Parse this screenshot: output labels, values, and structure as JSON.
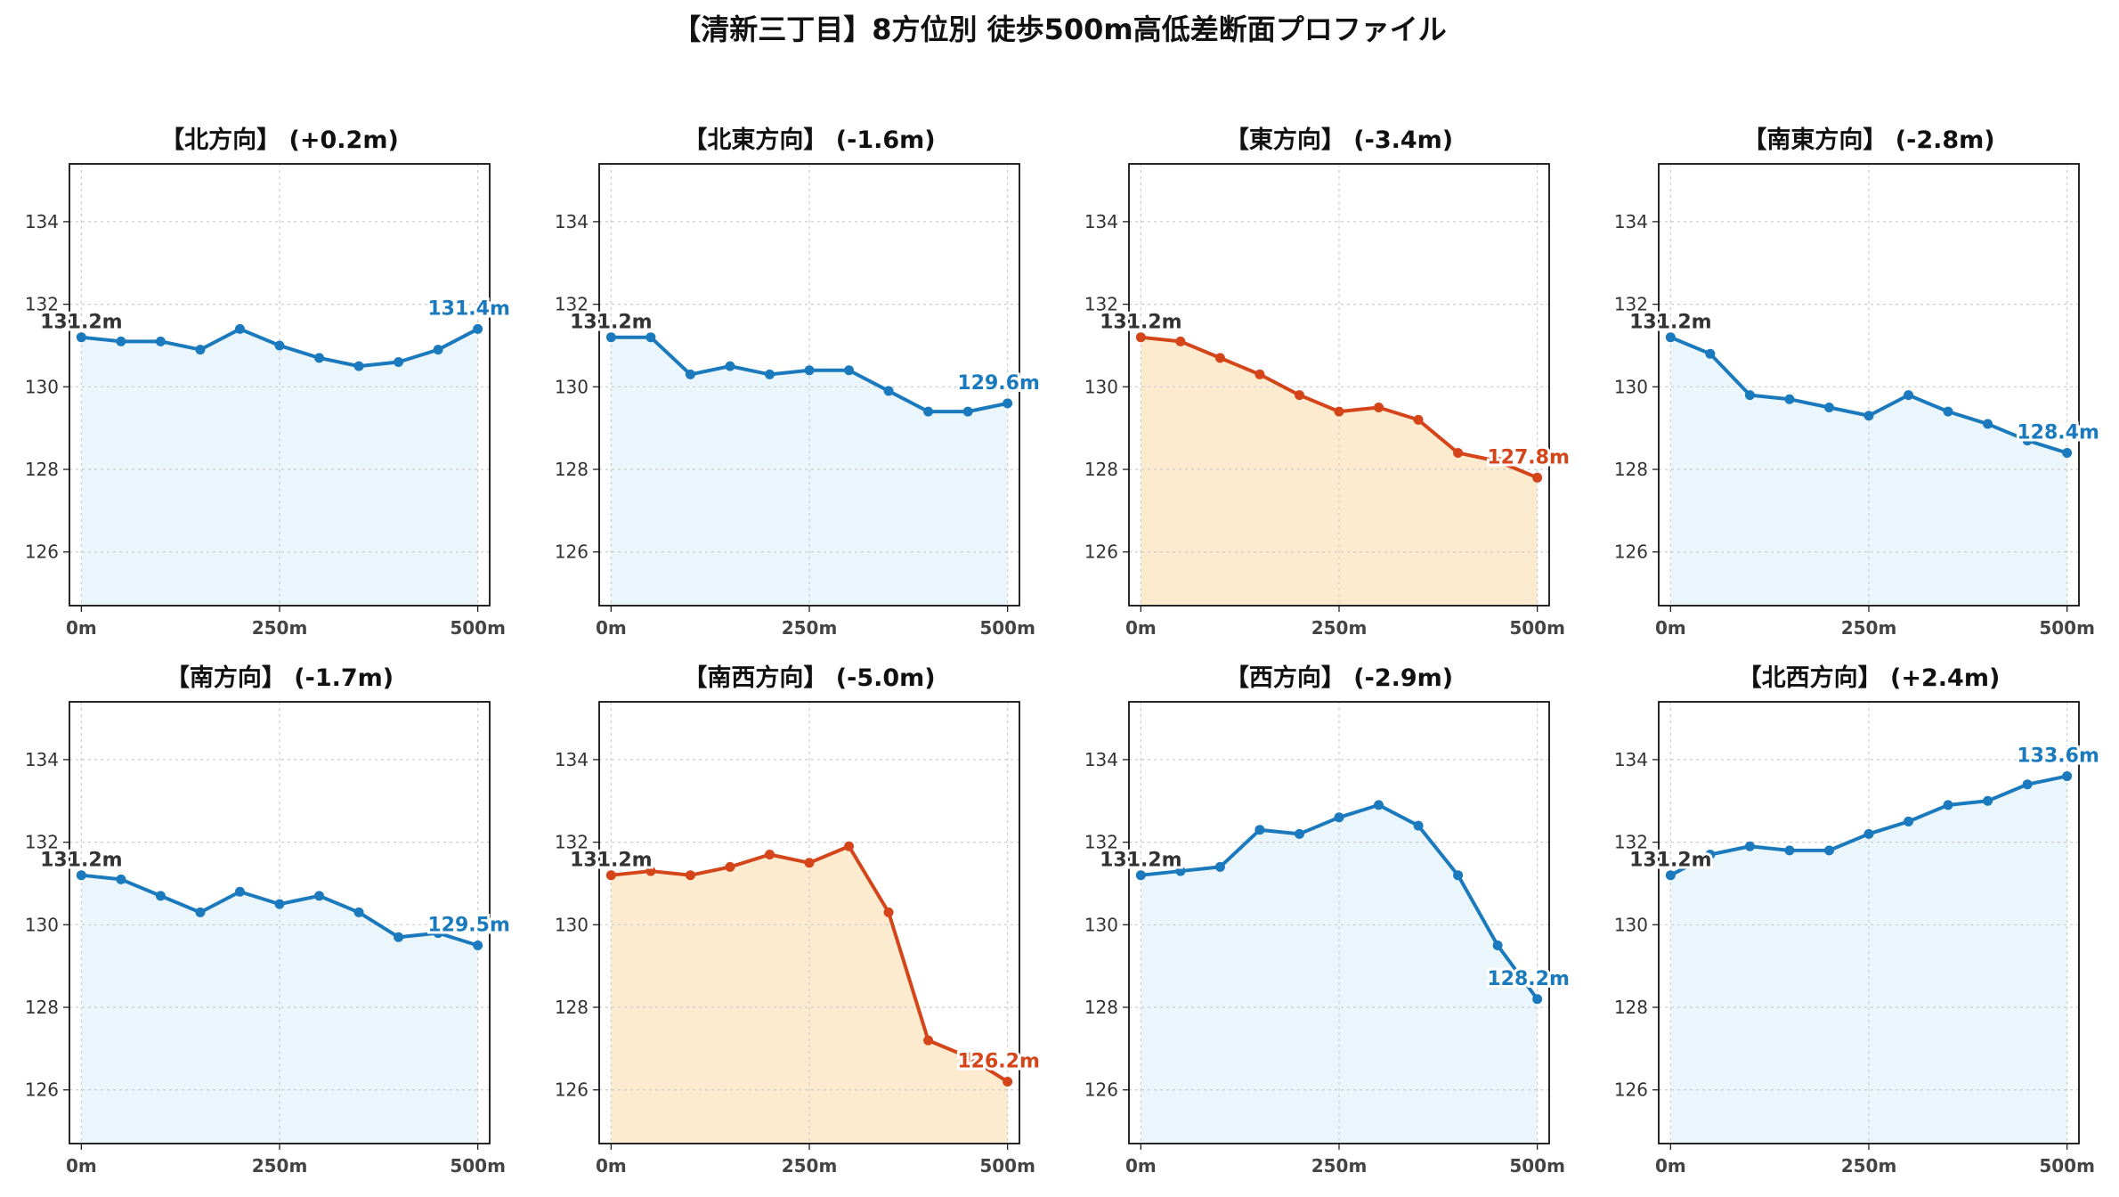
{
  "title": "【清新三丁目】8方位別 徒歩500m高低差断面プロファイル",
  "colors": {
    "up_line": "#1a7abd",
    "up_fill": "#eaf6fb",
    "down_line": "#d4451a",
    "down_fill": "#fdebd0",
    "start_label": "#333333",
    "grid": "#cccccc"
  },
  "chart_data": [
    {
      "type": "line",
      "title": "【北方向】 (+0.2m)",
      "x": [
        0,
        50,
        100,
        150,
        200,
        250,
        300,
        350,
        400,
        450,
        500
      ],
      "y": [
        131.2,
        131.1,
        131.1,
        130.9,
        131.4,
        131.0,
        130.7,
        130.5,
        130.6,
        130.9,
        131.4
      ],
      "start_label": "131.2m",
      "end_label": "131.4m",
      "style": "up",
      "x_ticks": [
        "0m",
        "250m",
        "500m"
      ],
      "y_ticks": [
        "126",
        "128",
        "130",
        "132",
        "134"
      ],
      "xlim": [
        -15,
        515
      ],
      "ylim": [
        124.7,
        135.4
      ],
      "grid": true
    },
    {
      "type": "line",
      "title": "【北東方向】 (-1.6m)",
      "x": [
        0,
        50,
        100,
        150,
        200,
        250,
        300,
        350,
        400,
        450,
        500
      ],
      "y": [
        131.2,
        131.2,
        130.3,
        130.5,
        130.3,
        130.4,
        130.4,
        129.9,
        129.4,
        129.4,
        129.6
      ],
      "start_label": "131.2m",
      "end_label": "129.6m",
      "style": "up",
      "x_ticks": [
        "0m",
        "250m",
        "500m"
      ],
      "y_ticks": [
        "126",
        "128",
        "130",
        "132",
        "134"
      ],
      "xlim": [
        -15,
        515
      ],
      "ylim": [
        124.7,
        135.4
      ],
      "grid": true
    },
    {
      "type": "line",
      "title": "【東方向】 (-3.4m)",
      "x": [
        0,
        50,
        100,
        150,
        200,
        250,
        300,
        350,
        400,
        450,
        500
      ],
      "y": [
        131.2,
        131.1,
        130.7,
        130.3,
        129.8,
        129.4,
        129.5,
        129.2,
        128.4,
        128.2,
        127.8
      ],
      "start_label": "131.2m",
      "end_label": "127.8m",
      "style": "down",
      "x_ticks": [
        "0m",
        "250m",
        "500m"
      ],
      "y_ticks": [
        "126",
        "128",
        "130",
        "132",
        "134"
      ],
      "xlim": [
        -15,
        515
      ],
      "ylim": [
        124.7,
        135.4
      ],
      "grid": true
    },
    {
      "type": "line",
      "title": "【南東方向】 (-2.8m)",
      "x": [
        0,
        50,
        100,
        150,
        200,
        250,
        300,
        350,
        400,
        450,
        500
      ],
      "y": [
        131.2,
        130.8,
        129.8,
        129.7,
        129.5,
        129.3,
        129.8,
        129.4,
        129.1,
        128.7,
        128.4
      ],
      "start_label": "131.2m",
      "end_label": "128.4m",
      "style": "up",
      "x_ticks": [
        "0m",
        "250m",
        "500m"
      ],
      "y_ticks": [
        "126",
        "128",
        "130",
        "132",
        "134"
      ],
      "xlim": [
        -15,
        515
      ],
      "ylim": [
        124.7,
        135.4
      ],
      "grid": true
    },
    {
      "type": "line",
      "title": "【南方向】 (-1.7m)",
      "x": [
        0,
        50,
        100,
        150,
        200,
        250,
        300,
        350,
        400,
        450,
        500
      ],
      "y": [
        131.2,
        131.1,
        130.7,
        130.3,
        130.8,
        130.5,
        130.7,
        130.3,
        129.7,
        129.8,
        129.5
      ],
      "start_label": "131.2m",
      "end_label": "129.5m",
      "style": "up",
      "x_ticks": [
        "0m",
        "250m",
        "500m"
      ],
      "y_ticks": [
        "126",
        "128",
        "130",
        "132",
        "134"
      ],
      "xlim": [
        -15,
        515
      ],
      "ylim": [
        124.7,
        135.4
      ],
      "grid": true
    },
    {
      "type": "line",
      "title": "【南西方向】 (-5.0m)",
      "x": [
        0,
        50,
        100,
        150,
        200,
        250,
        300,
        350,
        400,
        450,
        500
      ],
      "y": [
        131.2,
        131.3,
        131.2,
        131.4,
        131.7,
        131.5,
        131.9,
        130.3,
        127.2,
        126.8,
        126.2
      ],
      "start_label": "131.2m",
      "end_label": "126.2m",
      "style": "down",
      "x_ticks": [
        "0m",
        "250m",
        "500m"
      ],
      "y_ticks": [
        "126",
        "128",
        "130",
        "132",
        "134"
      ],
      "xlim": [
        -15,
        515
      ],
      "ylim": [
        124.7,
        135.4
      ],
      "grid": true
    },
    {
      "type": "line",
      "title": "【西方向】 (-2.9m)",
      "x": [
        0,
        50,
        100,
        150,
        200,
        250,
        300,
        350,
        400,
        450,
        500
      ],
      "y": [
        131.2,
        131.3,
        131.4,
        132.3,
        132.2,
        132.6,
        132.9,
        132.4,
        131.2,
        129.5,
        128.2
      ],
      "start_label": "131.2m",
      "end_label": "128.2m",
      "style": "up",
      "x_ticks": [
        "0m",
        "250m",
        "500m"
      ],
      "y_ticks": [
        "126",
        "128",
        "130",
        "132",
        "134"
      ],
      "xlim": [
        -15,
        515
      ],
      "ylim": [
        124.7,
        135.4
      ],
      "grid": true
    },
    {
      "type": "line",
      "title": "【北西方向】 (+2.4m)",
      "x": [
        0,
        50,
        100,
        150,
        200,
        250,
        300,
        350,
        400,
        450,
        500
      ],
      "y": [
        131.2,
        131.7,
        131.9,
        131.8,
        131.8,
        132.2,
        132.5,
        132.9,
        133.0,
        133.4,
        133.6
      ],
      "start_label": "131.2m",
      "end_label": "133.6m",
      "style": "up",
      "x_ticks": [
        "0m",
        "250m",
        "500m"
      ],
      "y_ticks": [
        "126",
        "128",
        "130",
        "132",
        "134"
      ],
      "xlim": [
        -15,
        515
      ],
      "ylim": [
        124.7,
        135.4
      ],
      "grid": true
    }
  ]
}
